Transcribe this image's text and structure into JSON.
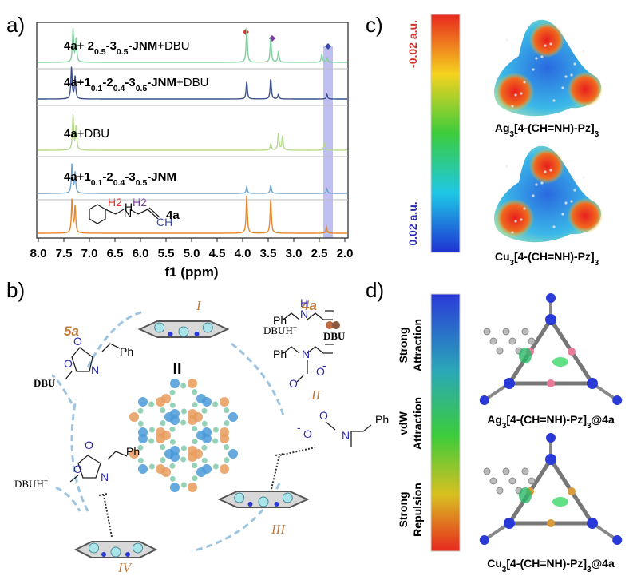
{
  "panel_labels": [
    "a)",
    "b)",
    "c)",
    "d)"
  ],
  "nmr": {
    "xlabel": "f1 (ppm)",
    "xticks": [
      "8.0",
      "7.5",
      "7.0",
      "6.5",
      "6.0",
      "5.5",
      "5.0",
      "4.5",
      "4.0",
      "3.5",
      "3.0",
      "2.5",
      "2.0"
    ],
    "traces": [
      {
        "color": "#7fcf9f",
        "label": [
          {
            "text": "4a+ 2",
            "style": "bold"
          },
          {
            "text": "0.5",
            "style": "sub"
          },
          {
            "text": "-3",
            "style": "bold"
          },
          {
            "text": "0.5",
            "style": "sub"
          },
          {
            "text": "-JNM",
            "style": "bold"
          },
          {
            "text": "+DBU",
            "style": "normal"
          }
        ]
      },
      {
        "color": "#3b4f8e",
        "label": [
          {
            "text": "4a+1",
            "style": "bold"
          },
          {
            "text": "0.1",
            "style": "sub"
          },
          {
            "text": "-2",
            "style": "bold"
          },
          {
            "text": "0.4",
            "style": "sub"
          },
          {
            "text": "-3",
            "style": "bold"
          },
          {
            "text": "0.5",
            "style": "sub"
          },
          {
            "text": "-JNM",
            "style": "bold"
          },
          {
            "text": "+DBU",
            "style": "normal"
          }
        ]
      },
      {
        "color": "#b5d98a",
        "label": [
          {
            "text": "4a",
            "style": "bold"
          },
          {
            "text": "+DBU",
            "style": "normal"
          }
        ]
      },
      {
        "color": "#6fa3c9",
        "label": [
          {
            "text": "4a+1",
            "style": "bold"
          },
          {
            "text": "0.1",
            "style": "sub"
          },
          {
            "text": "-2",
            "style": "bold"
          },
          {
            "text": "0.4",
            "style": "sub"
          },
          {
            "text": "-3",
            "style": "bold"
          },
          {
            "text": "0.5",
            "style": "sub"
          },
          {
            "text": "-JNM",
            "style": "bold"
          }
        ]
      },
      {
        "color": "#e8882c",
        "label": [
          {
            "text": "4a",
            "style": "bold"
          }
        ]
      }
    ],
    "structure_labels": [
      "H2",
      "H2",
      "N",
      "H",
      "CH"
    ]
  },
  "scheme": {
    "steps": [
      "I",
      "II",
      "III",
      "IV"
    ],
    "center": "II",
    "reactant": "4a",
    "product": "5a",
    "dbuh": [
      {
        "text": "DBUH",
        "style": "normal"
      },
      {
        "text": "+",
        "style": "sup"
      }
    ],
    "dbuh2": [
      {
        "text": "DBUH",
        "style": "normal"
      },
      {
        "text": "+",
        "style": "sup"
      }
    ],
    "dbu": "DBU",
    "dbu2": "DBU",
    "atoms": [
      "Ph",
      "N",
      "H",
      "Ph",
      "N",
      "O",
      "O",
      "-",
      "Ph",
      "N",
      "O",
      "O",
      "-",
      "Ph",
      "N",
      "O",
      "O",
      "Ph",
      "N",
      "O",
      "O"
    ]
  },
  "esp": {
    "top_label": "-0.02 a.u.",
    "bottom_label": "0.02 a.u.",
    "molecules": [
      [
        {
          "text": "Ag",
          "style": "bold"
        },
        {
          "text": "3",
          "style": "sub"
        },
        {
          "text": "[4-(CH=NH)-Pz]",
          "style": "bold"
        },
        {
          "text": "3",
          "style": "sub"
        }
      ],
      [
        {
          "text": "Cu",
          "style": "bold"
        },
        {
          "text": "3",
          "style": "sub"
        },
        {
          "text": "[4-(CH=NH)-Pz]",
          "style": "bold"
        },
        {
          "text": "3",
          "style": "sub"
        }
      ]
    ]
  },
  "nci": {
    "scale_labels": [
      [
        "Strong",
        "Attraction"
      ],
      [
        "vdW",
        "Attraction"
      ],
      [
        "Strong",
        "Repulsion"
      ]
    ],
    "molecules": [
      [
        {
          "text": "Ag",
          "style": "bold"
        },
        {
          "text": "3",
          "style": "sub"
        },
        {
          "text": "[4-(CH=NH)-Pz]",
          "style": "bold"
        },
        {
          "text": "3",
          "style": "sub"
        },
        {
          "text": "@4a",
          "style": "bold"
        }
      ],
      [
        {
          "text": "Cu",
          "style": "bold"
        },
        {
          "text": "3",
          "style": "sub"
        },
        {
          "text": "[4-(CH=NH)-Pz]",
          "style": "bold"
        },
        {
          "text": "3",
          "style": "sub"
        },
        {
          "text": "@4a",
          "style": "bold"
        }
      ]
    ]
  }
}
